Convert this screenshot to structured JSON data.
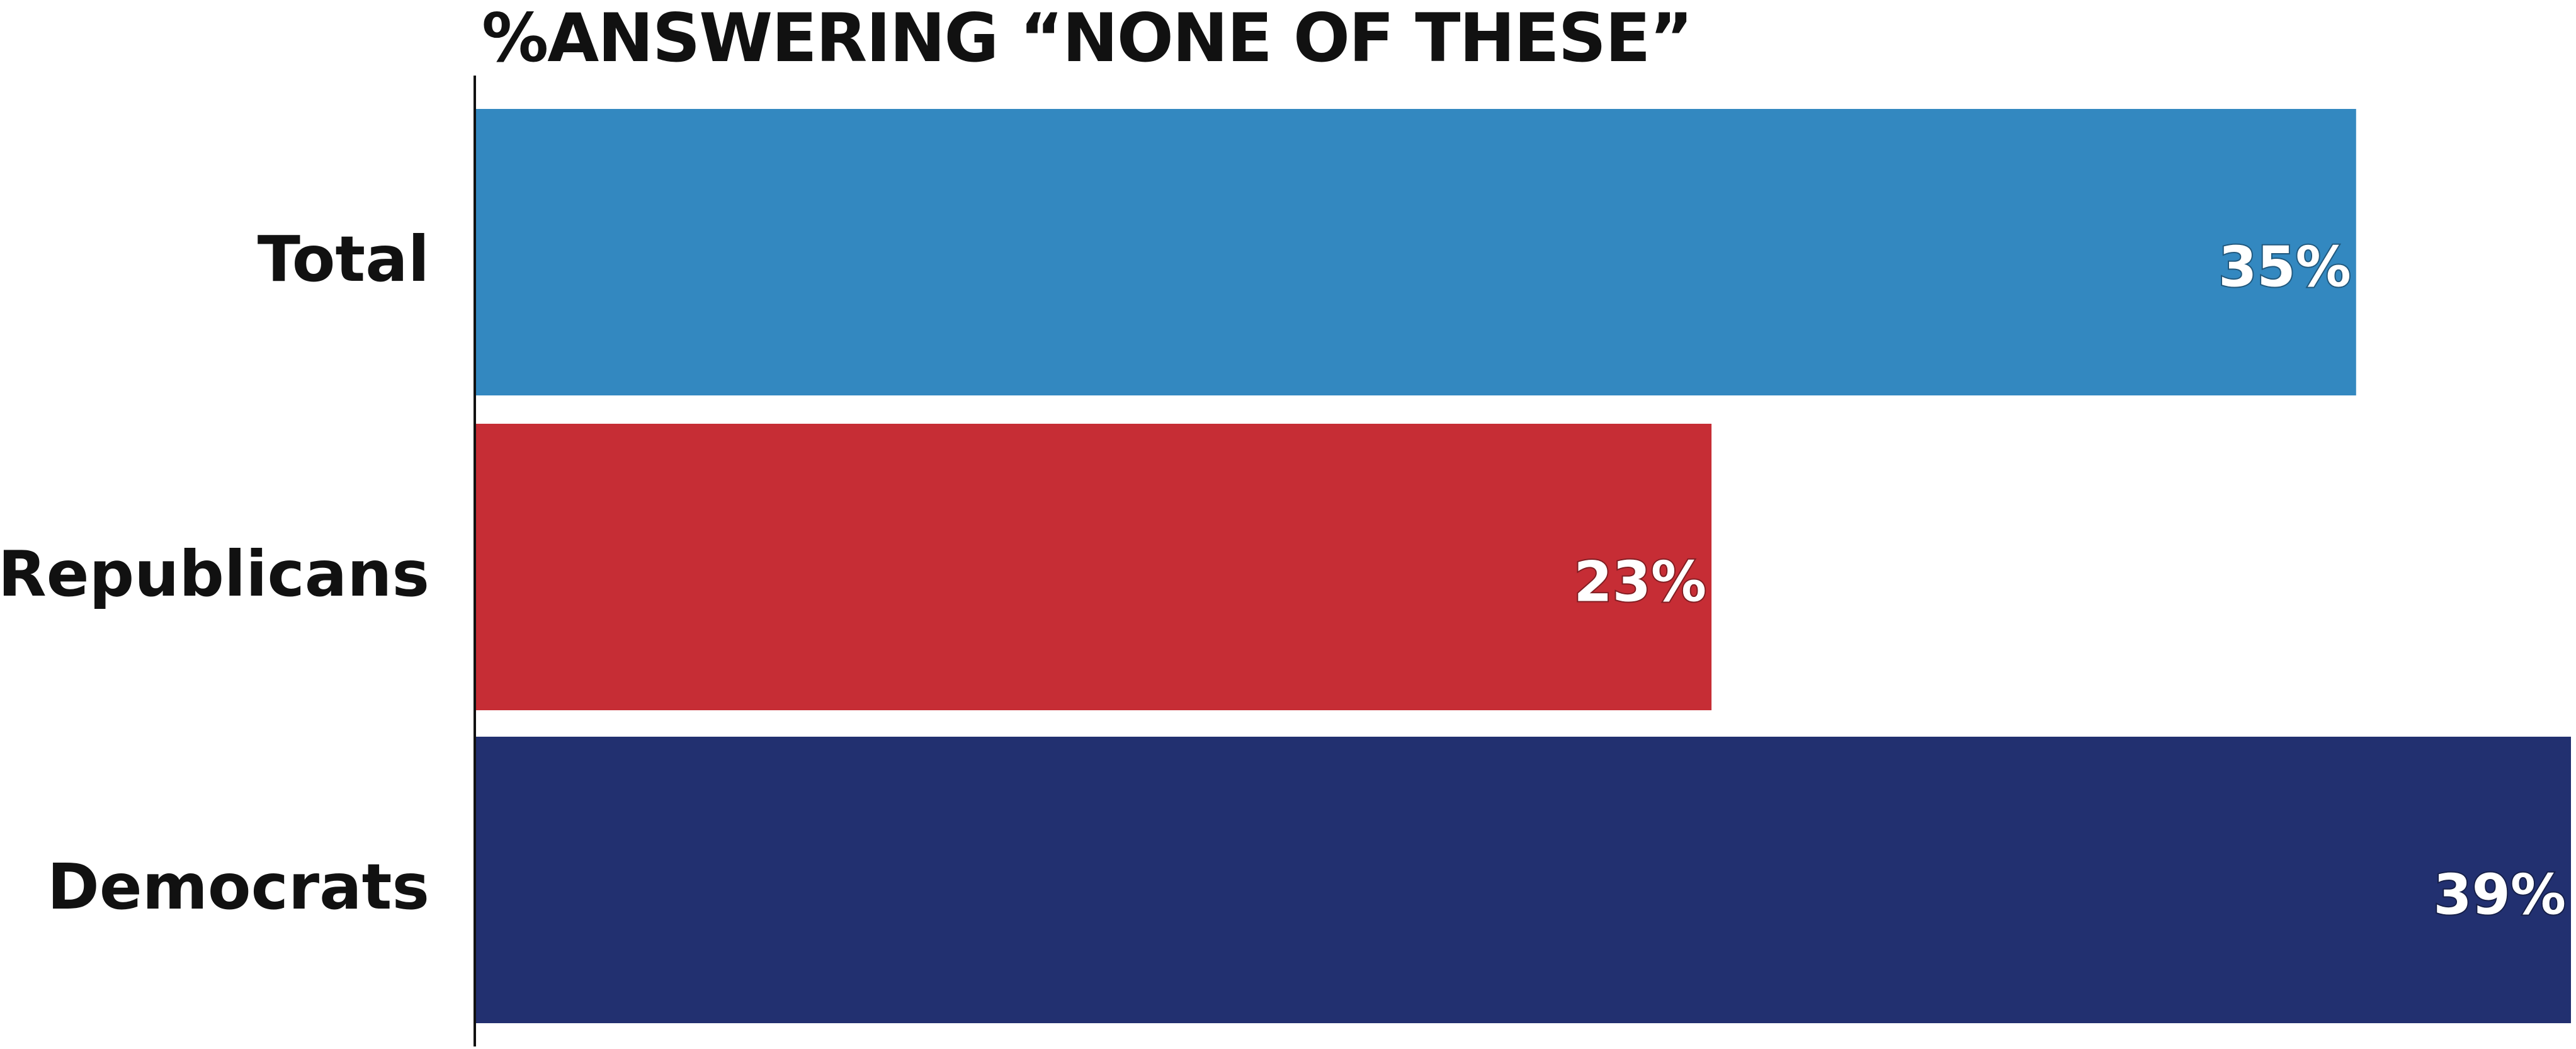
{
  "chart_data": {
    "type": "bar",
    "orientation": "horizontal",
    "title": "%ANSWERING “NONE OF THESE”",
    "categories": [
      "Total",
      "Republicans",
      "Democrats"
    ],
    "values": [
      35,
      23,
      39
    ],
    "value_labels": [
      "35%",
      "23%",
      "39%"
    ],
    "bar_colors": [
      "#3388c0",
      "#c62d35",
      "#223070"
    ],
    "xlim": [
      0,
      39
    ],
    "unit": "%",
    "grid": false,
    "legend": "none"
  }
}
